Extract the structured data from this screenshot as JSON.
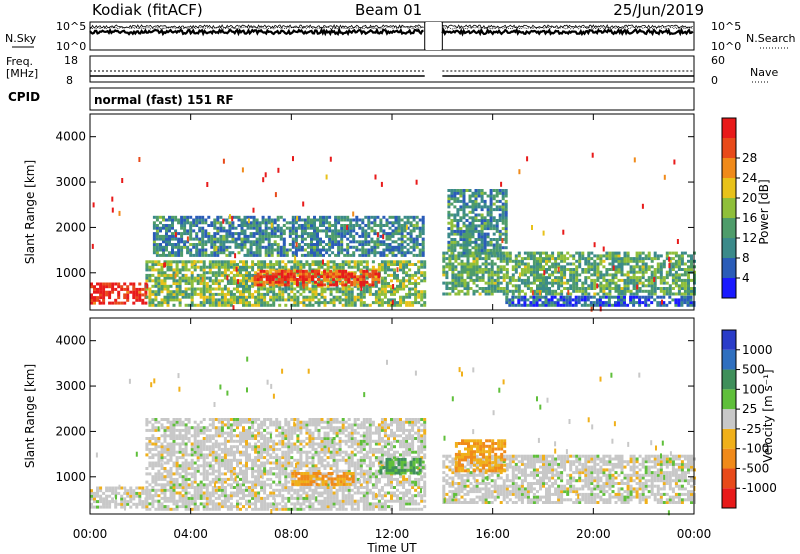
{
  "header": {
    "station": "Kodiak (fitACF)",
    "beam": "Beam 01",
    "date": "25/Jun/2019"
  },
  "top_panel": {
    "left_label": "N.Sky",
    "right_label": "N.Search",
    "left_ticks": [
      "10^5",
      "10^0"
    ],
    "right_ticks": [
      "10^5",
      "10^0"
    ]
  },
  "freq_panel": {
    "label_line1": "Freq.",
    "label_line2": "[MHz]",
    "left_ticks": [
      "18",
      "8"
    ],
    "right_label": "Nave",
    "right_ticks": [
      "60",
      "0"
    ]
  },
  "cpid": {
    "label": "CPID",
    "value": "normal (fast) 151 RF"
  },
  "x_axis": {
    "label": "Time UT",
    "ticks": [
      "00:00",
      "04:00",
      "08:00",
      "12:00",
      "16:00",
      "20:00",
      "00:00"
    ]
  },
  "y_axis": {
    "label": "Slant Range [km]",
    "ticks": [
      "1000",
      "2000",
      "3000",
      "4000"
    ]
  },
  "power_colorbar": {
    "label": "Power [dB]",
    "ticks": [
      "4",
      "8",
      "12",
      "16",
      "20",
      "24",
      "28"
    ],
    "colors": [
      "#1a1aff",
      "#2a5cb8",
      "#3b8a8a",
      "#4e9c6a",
      "#8fbf3a",
      "#e8c21a",
      "#f08a1a",
      "#e84a1a",
      "#e81a1a"
    ]
  },
  "velocity_colorbar": {
    "label": "Velocity [m s⁻¹]",
    "ticks": [
      "1000",
      "500",
      "100",
      "25",
      "-25",
      "-100",
      "-500",
      "-1000"
    ],
    "colors": [
      "#2a3cc8",
      "#2f6fbf",
      "#3f8f5a",
      "#5fbf3a",
      "#c8c8c8",
      "#f0b01a",
      "#f08a1a",
      "#e84a1a",
      "#e81a1a"
    ]
  },
  "chart_data": {
    "type": "heatmap",
    "x_range_hours": [
      0,
      24
    ],
    "y_range_km": [
      180,
      4500
    ],
    "data_gap_hours": [
      13.3,
      14.0
    ],
    "power_regions_dB": [
      {
        "t0": 0.0,
        "t1": 2.2,
        "r0": 300,
        "r1": 750,
        "level": 28
      },
      {
        "t0": 2.2,
        "t1": 13.3,
        "r0": 250,
        "r1": 1250,
        "level": 14
      },
      {
        "t0": 6.5,
        "t1": 11.5,
        "r0": 700,
        "r1": 1050,
        "level": 26
      },
      {
        "t0": 2.5,
        "t1": 13.2,
        "r0": 1350,
        "r1": 2250,
        "level": 9
      },
      {
        "t0": 14.0,
        "t1": 24.0,
        "r0": 500,
        "r1": 1450,
        "level": 12
      },
      {
        "t0": 14.2,
        "t1": 16.5,
        "r0": 1400,
        "r1": 2800,
        "level": 10
      },
      {
        "t0": 16.5,
        "t1": 24.0,
        "r0": 250,
        "r1": 450,
        "level": 6
      }
    ],
    "velocity_regions_ms": [
      {
        "t0": 0.0,
        "t1": 2.2,
        "r0": 300,
        "r1": 750,
        "level": 0
      },
      {
        "t0": 2.2,
        "t1": 13.3,
        "r0": 250,
        "r1": 2250,
        "level": 0
      },
      {
        "t0": 8.0,
        "t1": 10.5,
        "r0": 800,
        "r1": 1050,
        "level": -100
      },
      {
        "t0": 11.5,
        "t1": 13.2,
        "r0": 1050,
        "r1": 1400,
        "level": 100
      },
      {
        "t0": 14.0,
        "t1": 24.0,
        "r0": 400,
        "r1": 1450,
        "level": 0
      },
      {
        "t0": 14.5,
        "t1": 16.5,
        "r0": 1100,
        "r1": 1800,
        "level": -100
      }
    ]
  }
}
